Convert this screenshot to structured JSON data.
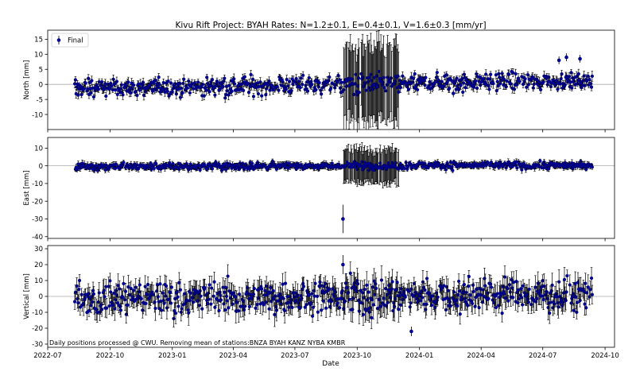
{
  "title": "Kivu Rift Project: BYAH  Rates: N=1.2±0.1, E=0.4±0.1, V=1.6±0.3 [mm/yr]",
  "footnote": "Daily positions processed @ CWU. Removing mean of stations:BNZA BYAH KANZ NYBA KMBR",
  "colors": {
    "marker": "#00008b",
    "errorbar": "#000000",
    "zero_line": "#aaaaaa",
    "frame": "#000000"
  },
  "chart_data": {
    "type": "scatter",
    "shared_x": {
      "label": "Date",
      "range": [
        "2022-07-01",
        "2024-10-15"
      ],
      "ticks": [
        "2022-07",
        "2022-10",
        "2023-01",
        "2023-04",
        "2023-07",
        "2023-10",
        "2024-01",
        "2024-04",
        "2024-07",
        "2024-10"
      ],
      "data_start": "2022-08-10",
      "data_end": "2024-09-12"
    },
    "legend": {
      "label": "Final",
      "placement": "top-left"
    },
    "panels": [
      {
        "name": "north",
        "ylabel": "North [mm]",
        "ylim": [
          -15,
          18
        ],
        "yticks": [
          -10,
          -5,
          0,
          5,
          10,
          15
        ],
        "rate_mm_per_yr": 1.2,
        "typical_error_mm": 1.3,
        "scatter_mm": 1.4,
        "noisy_interval": {
          "start": "2023-09-10",
          "end": "2023-12-01",
          "error_mm": 13
        },
        "extra_features": [
          {
            "date": "2024-07-25",
            "value": 8
          },
          {
            "date": "2024-08-05",
            "value": 9
          },
          {
            "date": "2024-08-25",
            "value": 8.5
          },
          {
            "date": "2024-02-20",
            "value": -3
          }
        ]
      },
      {
        "name": "east",
        "ylabel": "East [mm]",
        "ylim": [
          -41,
          16
        ],
        "yticks": [
          -40,
          -30,
          -20,
          -10,
          0,
          10
        ],
        "rate_mm_per_yr": 0.4,
        "typical_error_mm": 1.5,
        "scatter_mm": 1.0,
        "noisy_interval": {
          "start": "2023-09-10",
          "end": "2023-12-01",
          "error_mm": 10
        },
        "extra_features": [
          {
            "date": "2023-09-10",
            "value": -30,
            "error_mm": 8
          }
        ]
      },
      {
        "name": "vertical",
        "ylabel": "Vertical [mm]",
        "ylim": [
          -32,
          32
        ],
        "yticks": [
          -30,
          -20,
          -10,
          0,
          10,
          20,
          30
        ],
        "rate_mm_per_yr": 1.6,
        "typical_error_mm": 6,
        "scatter_mm": 5,
        "noisy_interval": {
          "start": "2023-09-10",
          "end": "2023-12-01",
          "error_mm": 8
        },
        "extra_features": [
          {
            "date": "2023-12-20",
            "value": -22,
            "error_mm": 3
          },
          {
            "date": "2023-09-10",
            "value": 20,
            "error_mm": 6
          }
        ]
      }
    ]
  }
}
